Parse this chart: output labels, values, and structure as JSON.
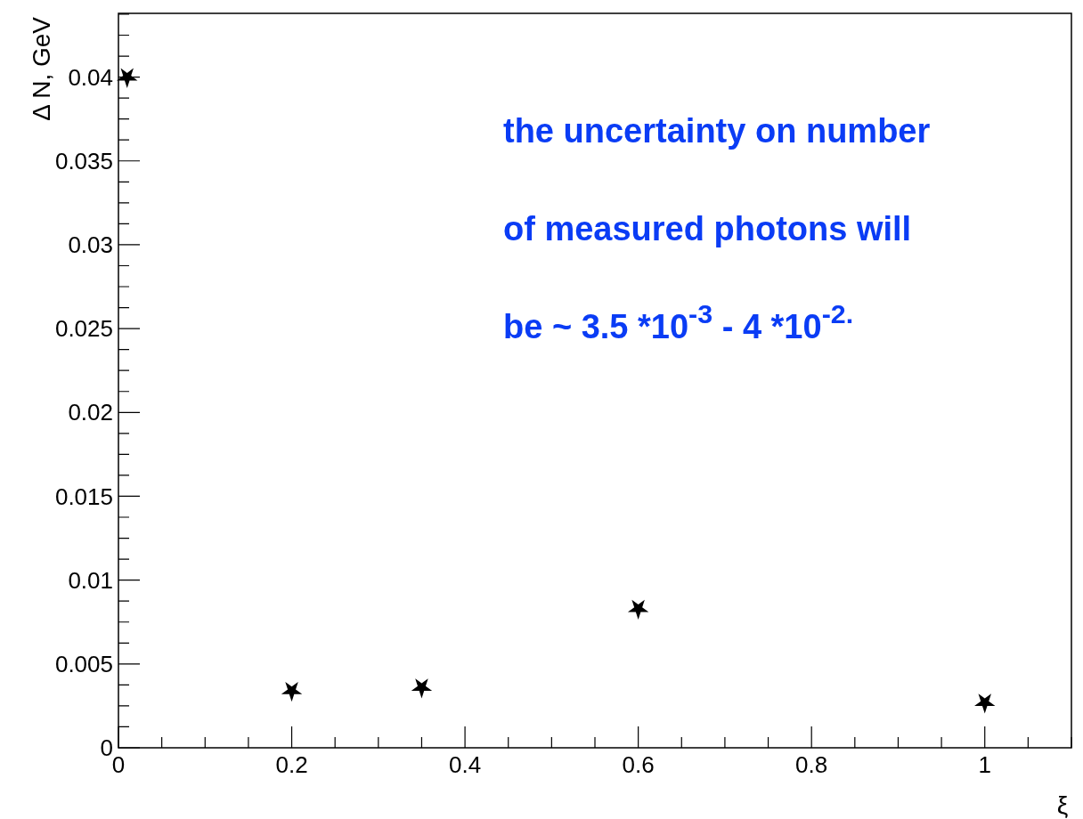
{
  "chart_data": {
    "type": "scatter",
    "xlabel": "ξ",
    "ylabel": "Δ N, GeV",
    "x": [
      0.01,
      0.2,
      0.35,
      0.6,
      1.0
    ],
    "values": [
      0.04,
      0.0034,
      0.0036,
      0.0083,
      0.0027
    ],
    "color": "#000000",
    "marker": "star",
    "xlim": [
      0,
      1.1
    ],
    "xticks": [
      0,
      0.2,
      0.4,
      0.6,
      0.8,
      1
    ],
    "ylim": [
      0,
      0.0438
    ],
    "yticks": [
      0,
      0.005,
      0.01,
      0.015,
      0.02,
      0.025,
      0.03,
      0.035,
      0.04
    ],
    "grid": false,
    "annotations": [
      "the uncertainty on number",
      "of measured photons will",
      "be ~ 3.5 *10$^{-3}$ - 4 *10$^{-2.}$"
    ]
  }
}
